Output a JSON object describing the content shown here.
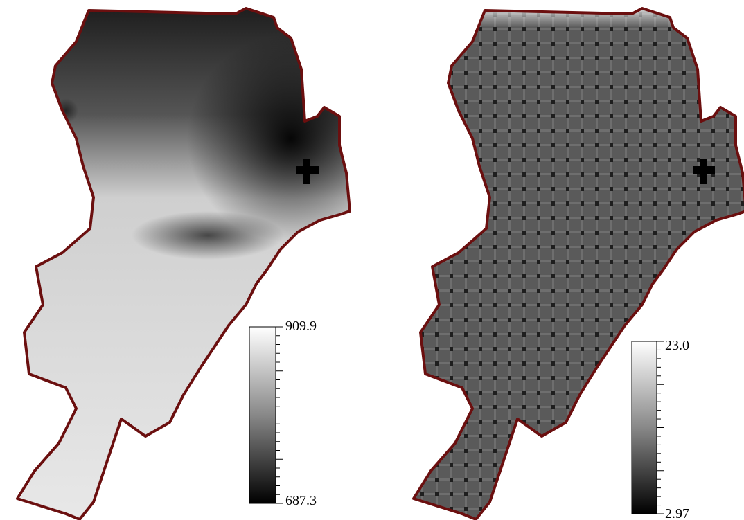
{
  "maps": [
    {
      "colorbar": {
        "max_label": "909.9",
        "min_label": "687.3"
      }
    },
    {
      "colorbar": {
        "max_label": "23.0",
        "min_label": "2.97"
      }
    }
  ]
}
